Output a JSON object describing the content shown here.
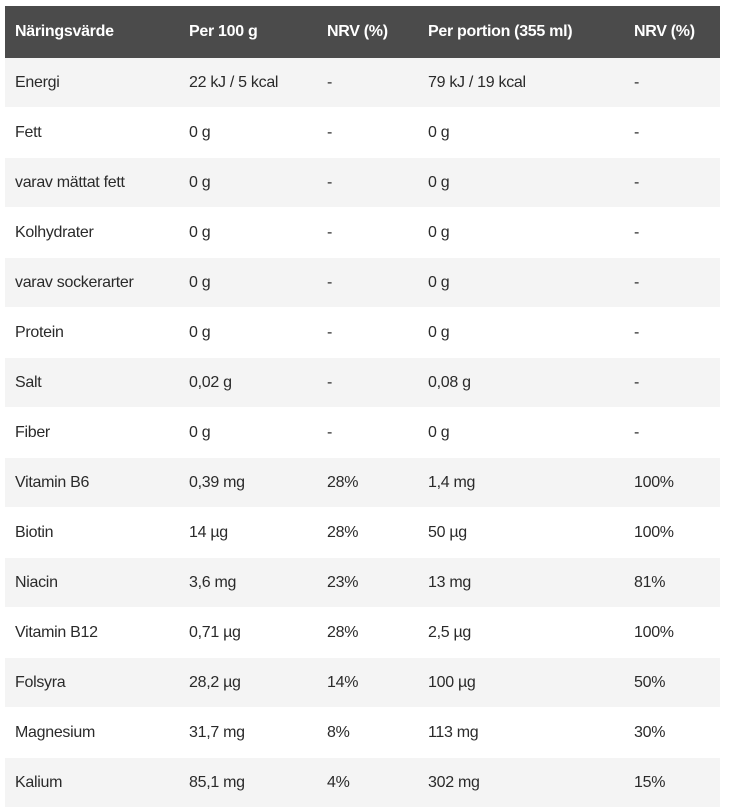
{
  "table": {
    "headers": [
      "Näringsvärde",
      "Per 100 g",
      "NRV (%)",
      "Per portion (355 ml)",
      "NRV (%)"
    ],
    "rows": [
      [
        "Energi",
        "22 kJ / 5 kcal",
        "-",
        "79 kJ / 19 kcal",
        "-"
      ],
      [
        "Fett",
        "0 g",
        "-",
        "0 g",
        "-"
      ],
      [
        "varav mättat fett",
        "0 g",
        "-",
        "0 g",
        "-"
      ],
      [
        "Kolhydrater",
        "0 g",
        "-",
        "0 g",
        "-"
      ],
      [
        "varav sockerarter",
        "0 g",
        "-",
        "0 g",
        "-"
      ],
      [
        "Protein",
        "0 g",
        "-",
        "0 g",
        "-"
      ],
      [
        "Salt",
        "0,02 g",
        "-",
        "0,08 g",
        "-"
      ],
      [
        "Fiber",
        "0 g",
        "-",
        "0 g",
        "-"
      ],
      [
        "Vitamin B6",
        "0,39 mg",
        "28%",
        "1,4 mg",
        "100%"
      ],
      [
        "Biotin",
        "14 µg",
        "28%",
        "50 µg",
        "100%"
      ],
      [
        "Niacin",
        "3,6 mg",
        "23%",
        "13 mg",
        "81%"
      ],
      [
        "Vitamin B12",
        "0,71 µg",
        "28%",
        "2,5 µg",
        "100%"
      ],
      [
        "Folsyra",
        "28,2 µg",
        "14%",
        "100 µg",
        "50%"
      ],
      [
        "Magnesium",
        "31,7 mg",
        "8%",
        "113 mg",
        "30%"
      ],
      [
        "Kalium",
        "85,1 mg",
        "4%",
        "302 mg",
        "15%"
      ]
    ]
  },
  "colors": {
    "header_bg": "#4b4b4b",
    "header_text": "#ffffff",
    "row_alt_bg": "#f4f4f4",
    "text": "#2a2a2a"
  }
}
